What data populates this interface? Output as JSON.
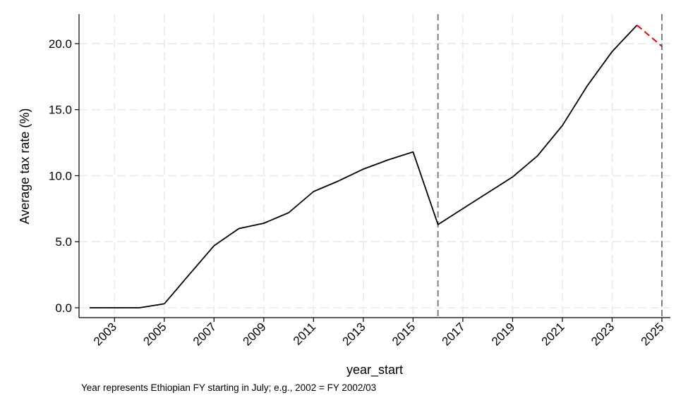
{
  "chart_data": {
    "type": "line",
    "xlabel": "year_start",
    "ylabel": "Average tax rate (%)",
    "note": "Year represents Ethiopian FY starting in July; e.g., 2002 = FY 2002/03",
    "xlim": [
      2002,
      2025
    ],
    "ylim": [
      0,
      21.5
    ],
    "x_ticks": [
      2003,
      2005,
      2007,
      2009,
      2011,
      2013,
      2015,
      2017,
      2019,
      2021,
      2023,
      2025
    ],
    "y_ticks": [
      "0.0",
      "5.0",
      "10.0",
      "15.0",
      "20.0"
    ],
    "grid": true,
    "series": [
      {
        "style": "solid",
        "color": "#000000",
        "x": [
          2002,
          2003,
          2004,
          2005,
          2006,
          2007,
          2008,
          2009,
          2010,
          2011,
          2012,
          2013,
          2014,
          2015,
          2016,
          2017,
          2018,
          2019,
          2020,
          2021,
          2022,
          2023,
          2024
        ],
        "y": [
          0.0,
          0.0,
          0.0,
          0.3,
          2.5,
          4.7,
          6.0,
          6.4,
          7.2,
          8.8,
          9.6,
          10.5,
          11.2,
          11.8,
          6.3,
          7.5,
          8.7,
          9.9,
          11.5,
          13.8,
          16.8,
          19.4,
          21.4
        ]
      },
      {
        "style": "dashed",
        "color": "#e8000b",
        "x": [
          2024,
          2025
        ],
        "y": [
          21.4,
          19.8
        ]
      }
    ],
    "vlines": [
      {
        "x": 2016,
        "style": "dashed",
        "color": "#808080"
      },
      {
        "x": 2025,
        "style": "dashed",
        "color": "#808080"
      }
    ]
  }
}
